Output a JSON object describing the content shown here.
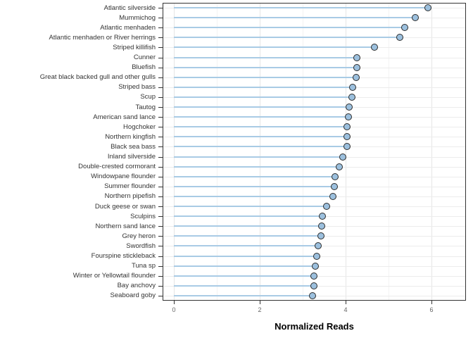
{
  "chart_data": {
    "type": "scatter",
    "subtype": "lollipop-dot-plot",
    "orientation": "horizontal",
    "title": "",
    "xlabel": "Normalized Reads",
    "ylabel": "",
    "xlim": [
      -0.26,
      6.8
    ],
    "x_ticks": [
      0,
      2,
      4,
      6
    ],
    "x_tick_labels": [
      "0",
      "2",
      "4",
      "6"
    ],
    "grid": "horizontal row lines + vertical major/minor",
    "legend": "none",
    "categories": [
      "Atlantic silverside",
      "Mummichog",
      "Atlantic menhaden",
      "Atlantic menhaden or River herrings",
      "Striped killifish",
      "Cunner",
      "Bluefish",
      "Great black backed gull and other gulls",
      "Striped bass",
      "Scup",
      "Tautog",
      "American sand lance",
      "Hogchoker",
      "Northern kingfish",
      "Black sea bass",
      "Inland silverside",
      "Double-crested cormorant",
      "Windowpane flounder",
      "Summer flounder",
      "Northern pipefish",
      "Duck geese or swan",
      "Sculpins",
      "Northern sand lance",
      "Grey heron",
      "Swordfish",
      "Fourspine stickleback",
      "Tuna sp",
      "Winter or Yellowtail flounder",
      "Bay anchovy",
      "Seaboard goby"
    ],
    "values": [
      5.92,
      5.63,
      5.38,
      5.27,
      4.68,
      4.27,
      4.26,
      4.25,
      4.17,
      4.15,
      4.08,
      4.06,
      4.04,
      4.03,
      4.03,
      3.93,
      3.86,
      3.75,
      3.73,
      3.7,
      3.56,
      3.46,
      3.45,
      3.43,
      3.36,
      3.33,
      3.3,
      3.27,
      3.26,
      3.23
    ],
    "colors": {
      "point_fill": "#9cc0de",
      "point_stroke": "#2b2b2b",
      "segment": "#a9cbe5",
      "panel_border": "#333333",
      "grid_major": "#e6e6e6",
      "grid_minor": "#f3f3f3",
      "axis_text": "#666666",
      "category_text": "#333333"
    }
  }
}
